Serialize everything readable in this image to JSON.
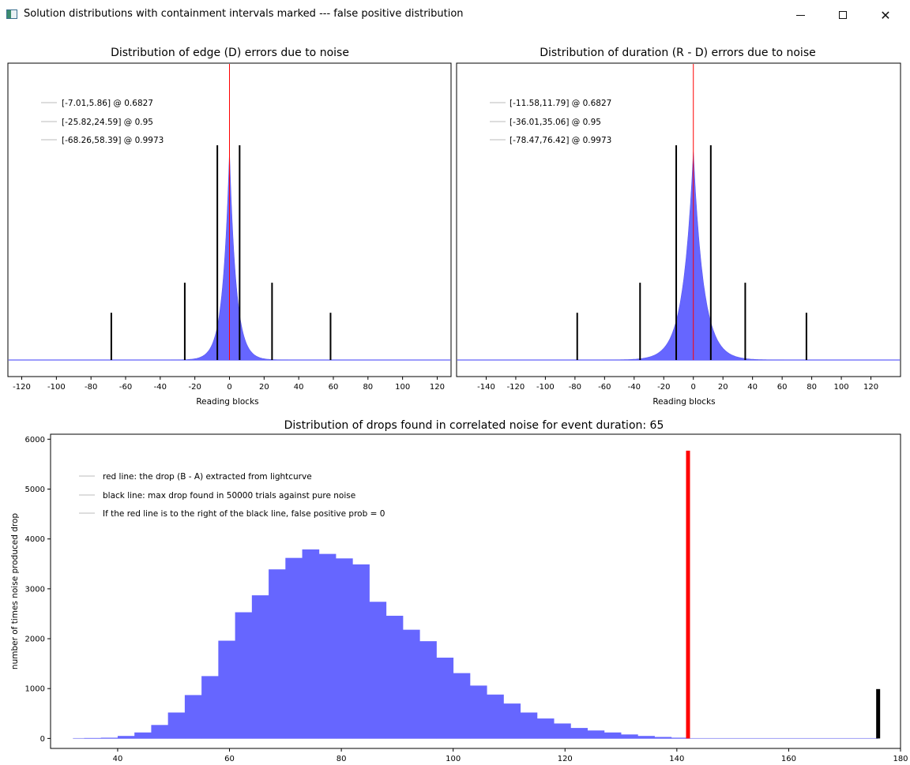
{
  "window": {
    "title": "Solution distributions with containment intervals marked --- false positive distribution",
    "icon": "app-window-icon",
    "buttons": [
      "minimize-icon",
      "maximize-icon",
      "close-icon"
    ]
  },
  "chart_data": [
    {
      "type": "bar",
      "title": "Distribution of edge (D) errors due to noise",
      "xlabel": "Reading blocks",
      "ylabel": "",
      "xlim": [
        -128,
        128
      ],
      "ylim": [
        0,
        1
      ],
      "grid": false,
      "xticks": [
        -120,
        -100,
        -80,
        -60,
        -40,
        -20,
        0,
        20,
        40,
        60,
        80,
        100,
        120
      ],
      "distribution": {
        "shape": "sharply peaked around 0",
        "peak_x": 0,
        "peak_height": 0.97,
        "scale": 5.0,
        "color": "#6666ff"
      },
      "center_line": {
        "x": 0,
        "color": "#ff0000"
      },
      "markers": [
        {
          "x": -68.26,
          "height": 0.22
        },
        {
          "x": -25.82,
          "height": 0.36
        },
        {
          "x": -7.01,
          "height": 1.0
        },
        {
          "x": 5.86,
          "height": 1.0
        },
        {
          "x": 24.59,
          "height": 0.36
        },
        {
          "x": 58.39,
          "height": 0.22
        }
      ],
      "legend": [
        "[-7.01,5.86] @ 0.6827",
        "[-25.82,24.59] @ 0.95",
        "[-68.26,58.39] @ 0.9973"
      ],
      "legend_position": "top-left"
    },
    {
      "type": "bar",
      "title": "Distribution of duration (R - D) errors due to noise",
      "xlabel": "Reading blocks",
      "ylabel": "",
      "xlim": [
        -160,
        140
      ],
      "ylim": [
        0,
        1
      ],
      "grid": false,
      "xticks": [
        -140,
        -120,
        -100,
        -80,
        -60,
        -40,
        -20,
        0,
        20,
        40,
        60,
        80,
        100,
        120
      ],
      "distribution": {
        "shape": "peaked around 0",
        "peak_x": 0,
        "peak_height": 0.97,
        "scale": 9.0,
        "color": "#6666ff"
      },
      "center_line": {
        "x": 0,
        "color": "#ff0000"
      },
      "markers": [
        {
          "x": -78.47,
          "height": 0.22
        },
        {
          "x": -36.01,
          "height": 0.36
        },
        {
          "x": -11.58,
          "height": 1.0
        },
        {
          "x": 11.79,
          "height": 1.0
        },
        {
          "x": 35.06,
          "height": 0.36
        },
        {
          "x": 76.42,
          "height": 0.22
        }
      ],
      "legend": [
        "[-11.58,11.79] @ 0.6827",
        "[-36.01,35.06] @ 0.95",
        "[-78.47,76.42] @ 0.9973"
      ],
      "legend_position": "top-left"
    },
    {
      "type": "bar",
      "title": "Distribution of drops found in correlated noise for event duration: 65",
      "xlabel": "",
      "ylabel": "number of times noise produced drop",
      "xlim": [
        28,
        180
      ],
      "ylim": [
        -200,
        6100
      ],
      "grid": false,
      "xticks": [
        40,
        60,
        80,
        100,
        120,
        140,
        160,
        180
      ],
      "yticks": [
        0,
        1000,
        2000,
        3000,
        4000,
        5000,
        6000
      ],
      "bin_width": 3,
      "bins_start": [
        34,
        37,
        40,
        43,
        46,
        49,
        52,
        55,
        58,
        61,
        64,
        67,
        70,
        73,
        76,
        79,
        82,
        85,
        88,
        91,
        94,
        97,
        100,
        103,
        106,
        109,
        112,
        115,
        118,
        121,
        124,
        127,
        130,
        133,
        136,
        139
      ],
      "values": [
        8,
        15,
        50,
        120,
        270,
        520,
        870,
        1250,
        1960,
        2530,
        2870,
        3390,
        3620,
        3790,
        3700,
        3610,
        3490,
        2740,
        2460,
        2180,
        1950,
        1620,
        1310,
        1060,
        880,
        700,
        520,
        400,
        300,
        210,
        160,
        120,
        80,
        50,
        30,
        15
      ],
      "bar_color": "#6666ff",
      "red_line": {
        "x": 142,
        "top": 5770,
        "color": "#ff0000"
      },
      "black_line": {
        "x": 176,
        "top": 990,
        "color": "#000000"
      },
      "legend": [
        "red line: the drop (B - A) extracted from lightcurve",
        "black line: max drop found in 50000 trials against pure noise",
        "If the red line is to the right of the black line, false positive prob = 0"
      ],
      "legend_position": "top-left"
    }
  ]
}
